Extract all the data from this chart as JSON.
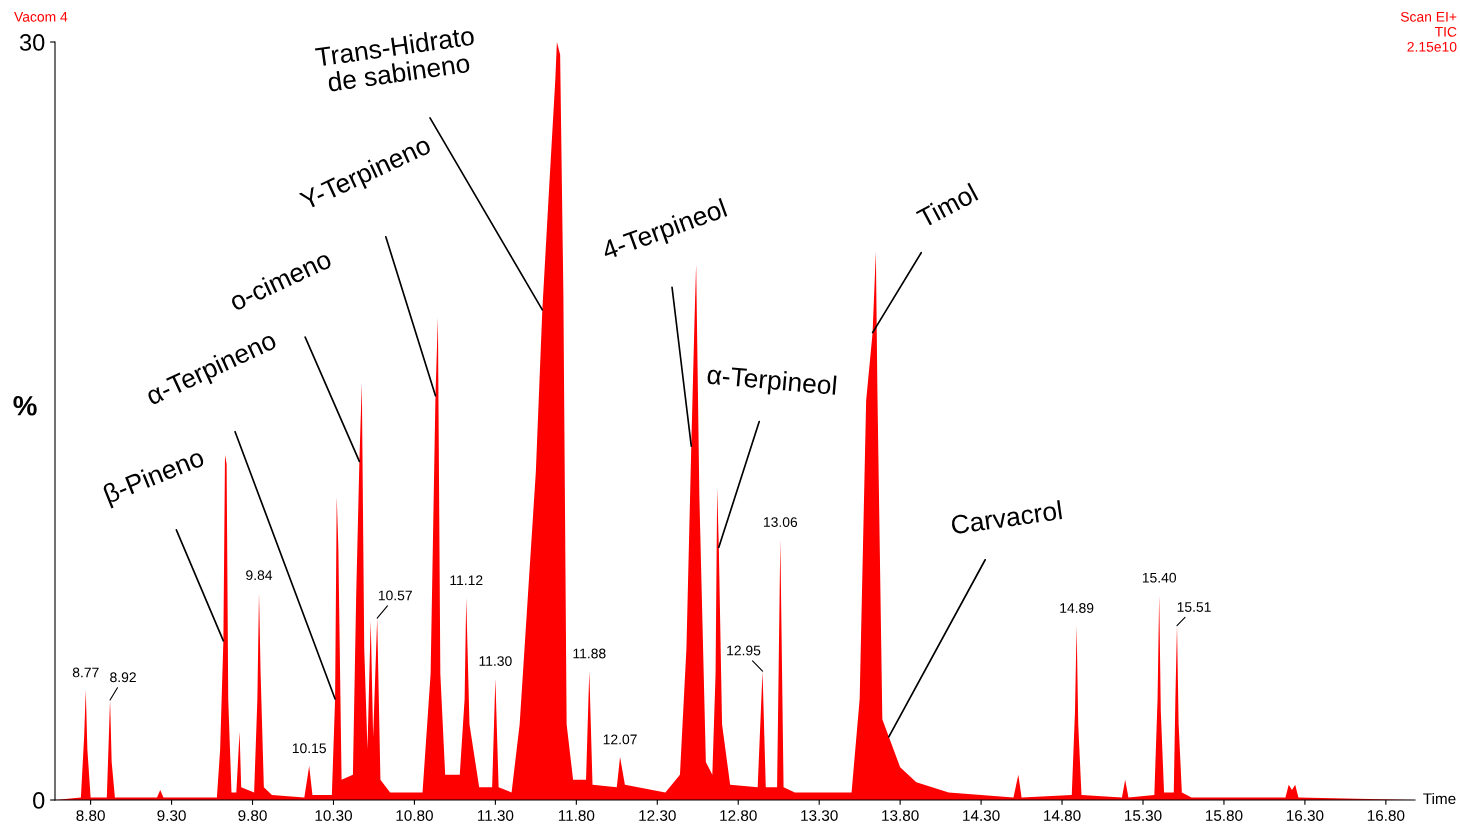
{
  "chart_data": {
    "type": "area",
    "xlabel": "Time",
    "ylabel": "%",
    "xlim": [
      8.58,
      16.98
    ],
    "ylim": [
      0,
      30
    ],
    "yticks": [
      0,
      30
    ],
    "xticks": [
      {
        "value": 8.8,
        "label": "8.80"
      },
      {
        "value": 9.3,
        "label": "9.30"
      },
      {
        "value": 9.8,
        "label": "9.80"
      },
      {
        "value": 10.3,
        "label": "10.30"
      },
      {
        "value": 10.8,
        "label": "10.80"
      },
      {
        "value": 11.3,
        "label": "11.30"
      },
      {
        "value": 11.8,
        "label": "11.80"
      },
      {
        "value": 12.3,
        "label": "12.30"
      },
      {
        "value": 12.8,
        "label": "12.80"
      },
      {
        "value": 13.3,
        "label": "13.30"
      },
      {
        "value": 13.8,
        "label": "13.80"
      },
      {
        "value": 14.3,
        "label": "14.30"
      },
      {
        "value": 14.8,
        "label": "14.80"
      },
      {
        "value": 15.3,
        "label": "15.30"
      },
      {
        "value": 15.8,
        "label": "15.80"
      },
      {
        "value": 16.3,
        "label": "16.30"
      },
      {
        "value": 16.8,
        "label": "16.80"
      }
    ],
    "series": [
      {
        "color": "#ff0000",
        "x": [
          8.58,
          8.74,
          8.76,
          8.77,
          8.78,
          8.8,
          8.9,
          8.91,
          8.92,
          8.93,
          8.95,
          9.21,
          9.23,
          9.25,
          9.58,
          9.6,
          9.62,
          9.63,
          9.64,
          9.65,
          9.67,
          9.7,
          9.72,
          9.73,
          9.81,
          9.83,
          9.84,
          9.85,
          9.87,
          9.92,
          10.12,
          10.15,
          10.17,
          10.29,
          10.31,
          10.32,
          10.33,
          10.35,
          10.42,
          10.44,
          10.46,
          10.475,
          10.49,
          10.51,
          10.53,
          10.545,
          10.57,
          10.59,
          10.65,
          10.85,
          10.9,
          10.93,
          10.945,
          10.96,
          10.99,
          11.08,
          11.11,
          11.12,
          11.14,
          11.2,
          11.28,
          11.3,
          11.32,
          11.4,
          11.45,
          11.5,
          11.55,
          11.59,
          11.63,
          11.67,
          11.68,
          11.7,
          11.72,
          11.74,
          11.78,
          11.86,
          11.88,
          11.9,
          12.05,
          12.07,
          12.1,
          12.35,
          12.44,
          12.48,
          12.51,
          12.53,
          12.54,
          12.56,
          12.6,
          12.64,
          12.66,
          12.67,
          12.68,
          12.7,
          12.75,
          12.92,
          12.95,
          12.97,
          13.04,
          13.06,
          13.08,
          13.15,
          13.5,
          13.55,
          13.59,
          13.63,
          13.65,
          13.66,
          13.69,
          13.73,
          13.8,
          13.9,
          14.1,
          14.5,
          14.53,
          14.55,
          14.86,
          14.88,
          14.89,
          14.9,
          14.92,
          15.17,
          15.19,
          15.21,
          15.37,
          15.39,
          15.4,
          15.41,
          15.43,
          15.49,
          15.5,
          15.51,
          15.52,
          15.54,
          15.6,
          16.18,
          16.2,
          16.22,
          16.24,
          16.26,
          16.98
        ],
        "values": [
          0,
          0.1,
          2.5,
          4.35,
          2.0,
          0.1,
          0.1,
          2.0,
          3.96,
          1.5,
          0.1,
          0.1,
          0.4,
          0.1,
          0.1,
          2.0,
          6.3,
          13.65,
          13.3,
          4.0,
          0.3,
          0.3,
          2.7,
          0.5,
          0.3,
          4.0,
          8.2,
          5.0,
          0.5,
          0.2,
          0.1,
          1.35,
          0.2,
          0.2,
          4.0,
          12.0,
          10.0,
          0.8,
          1.0,
          8.0,
          13.4,
          16.5,
          6.0,
          2.0,
          7.1,
          2.5,
          7.2,
          0.8,
          0.3,
          0.3,
          5.0,
          16.0,
          19.1,
          5.0,
          1.0,
          1.0,
          4.0,
          8.0,
          3.0,
          0.5,
          0.5,
          4.8,
          0.5,
          0.3,
          3.0,
          8.0,
          13.0,
          19.4,
          24.0,
          28.5,
          30,
          29.5,
          20,
          3.0,
          0.8,
          0.8,
          5.1,
          0.6,
          0.5,
          1.7,
          0.6,
          0.3,
          1.0,
          6.0,
          14.0,
          19.0,
          21.2,
          12.0,
          1.5,
          1.0,
          5.0,
          12.35,
          10.0,
          3.0,
          0.6,
          0.5,
          5.1,
          0.5,
          0.5,
          10.3,
          0.5,
          0.3,
          0.3,
          4.0,
          15.8,
          18.5,
          21.7,
          16.0,
          3.2,
          2.5,
          1.3,
          0.7,
          0.3,
          0.1,
          1.0,
          0.1,
          0.2,
          3.5,
          6.9,
          3.0,
          0.2,
          0.1,
          0.8,
          0.1,
          0.2,
          4.0,
          8.1,
          3.5,
          0.3,
          0.3,
          4.0,
          6.9,
          3.0,
          0.3,
          0.1,
          0.1,
          0.6,
          0.4,
          0.6,
          0.1,
          0
        ]
      }
    ],
    "annotations": [
      {
        "text": "β-Pineno",
        "x": 9.62,
        "y": 6.3
      },
      {
        "text": "α-Terpineno",
        "x": 10.31,
        "y": 4.0
      },
      {
        "text": "o-cimeno",
        "x": 10.46,
        "y": 13.4
      },
      {
        "text": "Υ-Terpineno",
        "x": 10.93,
        "y": 16.0
      },
      {
        "text": "Trans-Hidrato\nde sabineno",
        "x": 11.59,
        "y": 19.4
      },
      {
        "text": "4-Terpineol",
        "x": 12.51,
        "y": 14.0
      },
      {
        "text": "α-Terpineol",
        "x": 12.68,
        "y": 10.0
      },
      {
        "text": "Timol",
        "x": 13.63,
        "y": 18.5
      },
      {
        "text": "Carvacrol",
        "x": 13.73,
        "y": 2.5
      },
      {
        "text": "8.77",
        "x": 8.77,
        "y": 4.35
      },
      {
        "text": "8.92",
        "x": 8.92,
        "y": 3.96
      },
      {
        "text": "9.84",
        "x": 9.84,
        "y": 8.2
      },
      {
        "text": "10.15",
        "x": 10.15,
        "y": 1.35
      },
      {
        "text": "10.57",
        "x": 10.57,
        "y": 7.2
      },
      {
        "text": "11.12",
        "x": 11.12,
        "y": 8.0
      },
      {
        "text": "11.30",
        "x": 11.3,
        "y": 4.8
      },
      {
        "text": "11.88",
        "x": 11.88,
        "y": 5.1
      },
      {
        "text": "12.07",
        "x": 12.07,
        "y": 1.7
      },
      {
        "text": "12.95",
        "x": 12.95,
        "y": 5.1
      },
      {
        "text": "13.06",
        "x": 13.06,
        "y": 10.3
      },
      {
        "text": "14.89",
        "x": 14.89,
        "y": 6.9
      },
      {
        "text": "15.40",
        "x": 15.4,
        "y": 8.1
      },
      {
        "text": "15.51",
        "x": 15.51,
        "y": 6.9
      },
      "Vacom 4",
      "Scan EI+",
      "TIC",
      "2.15e10"
    ]
  }
}
